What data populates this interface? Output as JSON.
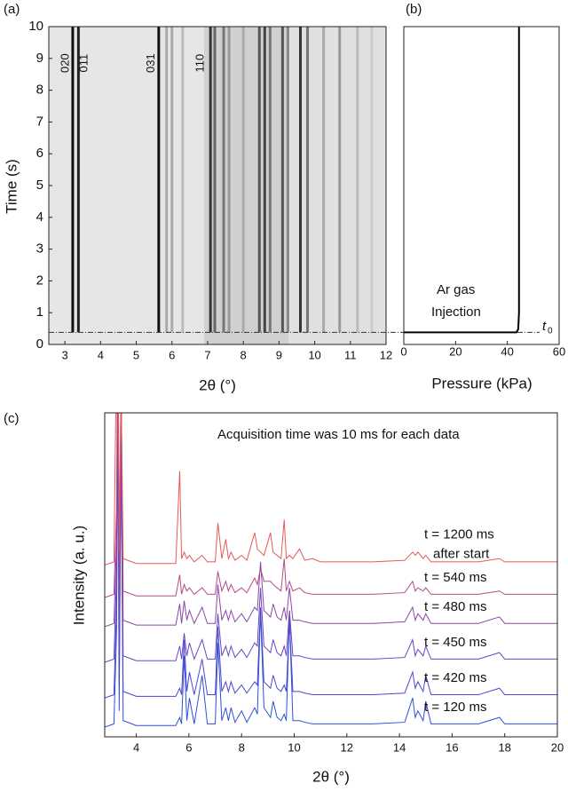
{
  "chart_data": [
    {
      "type": "heatmap",
      "panel": "(a)",
      "xlabel": "2θ (°)",
      "ylabel": "Time (s)",
      "xlim": [
        2.55,
        12
      ],
      "ylim": [
        0,
        10
      ],
      "xticks": [
        3,
        4,
        5,
        6,
        7,
        8,
        9,
        10,
        11,
        12
      ],
      "yticks": [
        0,
        1,
        2,
        3,
        4,
        5,
        6,
        7,
        8,
        9,
        10
      ],
      "peak_labels": [
        "020",
        "011",
        "031",
        "110"
      ],
      "stripes": {
        "x": [
          3.22,
          3.38,
          5.63,
          5.85,
          6.0,
          6.3,
          7.08,
          7.2,
          7.45,
          7.6,
          8.0,
          8.45,
          8.6,
          8.75,
          9.1,
          9.25,
          9.6,
          9.8,
          10.25,
          10.7,
          11.2,
          11.6
        ],
        "color": [
          "#111",
          "#222",
          "#111",
          "#aaa",
          "#aaa",
          "#bbb",
          "#333",
          "#666",
          "#777",
          "#999",
          "#aaa",
          "#555",
          "#444",
          "#777",
          "#555",
          "#888",
          "#333",
          "#777",
          "#aaa",
          "#999",
          "#bbb",
          "#ccc"
        ]
      },
      "t0": 0.38
    },
    {
      "type": "line",
      "panel": "(b)",
      "xlabel": "Pressure (kPa)",
      "xlim": [
        0,
        60
      ],
      "ylim": [
        0,
        10
      ],
      "xticks": [
        0,
        20,
        40,
        60
      ],
      "x": [
        0,
        43.5,
        44.2,
        44.5,
        44.5
      ],
      "values": [
        0.38,
        0.38,
        0.48,
        1,
        10
      ],
      "color": "#000",
      "annotation": [
        "Ar gas",
        "Injection"
      ],
      "t0_label": [
        "t",
        "0"
      ]
    },
    {
      "type": "line",
      "panel": "(c)",
      "xlabel": "2θ (°)",
      "ylabel": "Intensity (a. u.)",
      "annotation": "Acquisition time was 10 ms for each data",
      "xlim": [
        2.8,
        20
      ],
      "ylim": [
        0,
        100
      ],
      "xticks": [
        4,
        6,
        8,
        10,
        12,
        14,
        16,
        18,
        20
      ],
      "x": [
        2.8,
        3.15,
        3.25,
        3.3,
        3.35,
        3.42,
        3.5,
        4,
        5.5,
        5.65,
        5.72,
        5.82,
        5.92,
        6.02,
        6.2,
        6.5,
        6.7,
        7.0,
        7.1,
        7.25,
        7.4,
        7.5,
        7.6,
        7.75,
        8.0,
        8.2,
        8.5,
        8.6,
        8.72,
        8.85,
        9.1,
        9.2,
        9.35,
        9.5,
        9.62,
        9.7,
        9.82,
        9.95,
        10.2,
        10.4,
        10.7,
        11,
        12,
        13,
        14.2,
        14.5,
        14.6,
        14.7,
        14.9,
        15,
        15.2,
        16,
        17,
        17.8,
        18,
        19,
        20
      ],
      "series": [
        {
          "name": "t = 120 ms",
          "color": "#2f4fd8",
          "values": [
            3,
            4,
            33,
            98,
            8,
            91,
            5,
            3.5,
            3.5,
            6,
            4,
            25,
            5,
            12,
            4,
            19,
            4,
            4,
            29,
            5,
            9,
            5,
            9,
            4.5,
            8,
            4.5,
            9,
            7,
            39,
            9,
            6,
            11,
            6,
            5,
            7,
            5,
            37,
            5,
            5,
            4.5,
            4,
            4,
            4,
            4,
            4.5,
            12,
            6,
            8,
            5,
            11,
            4,
            4,
            4,
            6,
            4,
            4,
            4
          ]
        },
        {
          "name": "t = 420 ms",
          "color": "#4a48d0",
          "values": [
            12,
            13,
            40,
            100,
            16,
            92,
            14,
            12.5,
            12.5,
            15,
            13,
            30,
            14,
            20,
            13,
            24,
            13,
            13,
            34,
            14,
            17,
            14,
            17,
            13.5,
            16,
            13.5,
            17,
            16,
            40,
            17,
            15,
            19,
            15,
            14,
            16,
            14,
            36,
            14,
            14,
            13.5,
            13,
            13,
            13,
            13,
            13.5,
            20,
            15,
            17,
            14,
            19,
            13,
            13,
            13,
            15,
            13,
            13,
            13
          ]
        },
        {
          "name": "t = 450 ms",
          "color": "#6a46c2",
          "values": [
            23,
            24,
            50,
            110,
            27,
            100,
            25,
            23.5,
            23.5,
            28,
            24,
            32,
            25,
            29,
            24,
            30,
            24,
            24,
            38,
            25,
            28,
            25,
            28,
            24.5,
            27,
            24.5,
            29,
            28,
            46,
            28,
            26,
            30,
            26,
            25,
            28,
            25,
            39,
            25,
            25,
            24.5,
            24,
            24,
            24,
            24,
            24.5,
            30,
            25,
            27,
            25,
            28,
            24,
            24,
            24,
            26,
            24,
            24,
            24
          ]
        },
        {
          "name": "t = 480 ms",
          "color": "#8c46a8",
          "values": [
            34,
            35,
            60,
            120,
            38,
            105,
            36,
            34.5,
            34.5,
            41,
            35,
            42,
            36,
            39,
            35,
            40,
            35,
            35,
            47,
            36,
            39,
            36,
            39,
            35.5,
            38,
            35.5,
            40,
            39,
            54,
            39,
            37,
            41,
            37,
            36,
            40,
            36,
            46,
            36,
            36,
            35.5,
            35,
            35,
            35,
            35,
            35.5,
            40,
            36,
            38,
            36,
            38,
            35,
            35,
            35,
            37,
            35,
            35,
            35
          ]
        },
        {
          "name": "t = 540 ms",
          "color": "#b24a88",
          "values": [
            43,
            44,
            70,
            130,
            47,
            110,
            45,
            43.5,
            43.5,
            50,
            44,
            47,
            45,
            46,
            44,
            46,
            44,
            44,
            51,
            45,
            48,
            45,
            47,
            44.5,
            46,
            44.5,
            49,
            47,
            52,
            48,
            48,
            47,
            46,
            45,
            55,
            45,
            48,
            45,
            46,
            44.5,
            44,
            44,
            44,
            44,
            44.5,
            48,
            45,
            46,
            45,
            46,
            44,
            44,
            44,
            45,
            44,
            44,
            44
          ]
        },
        {
          "name": "t = 1200 ms",
          "note": "after start",
          "color": "#e85858",
          "values": [
            53,
            54,
            120,
            140,
            57,
            110,
            55,
            53.5,
            53.5,
            82,
            55,
            57,
            55,
            56,
            54,
            56,
            54,
            54,
            66,
            55,
            61,
            55,
            57,
            54.5,
            56,
            54.5,
            63,
            58,
            57,
            56,
            63,
            57,
            56,
            55,
            67,
            55,
            56,
            55,
            58,
            54.5,
            55,
            54,
            54,
            54,
            54.5,
            57,
            56,
            57,
            55,
            56,
            54,
            54,
            54,
            55,
            54,
            54,
            54
          ]
        }
      ]
    }
  ]
}
